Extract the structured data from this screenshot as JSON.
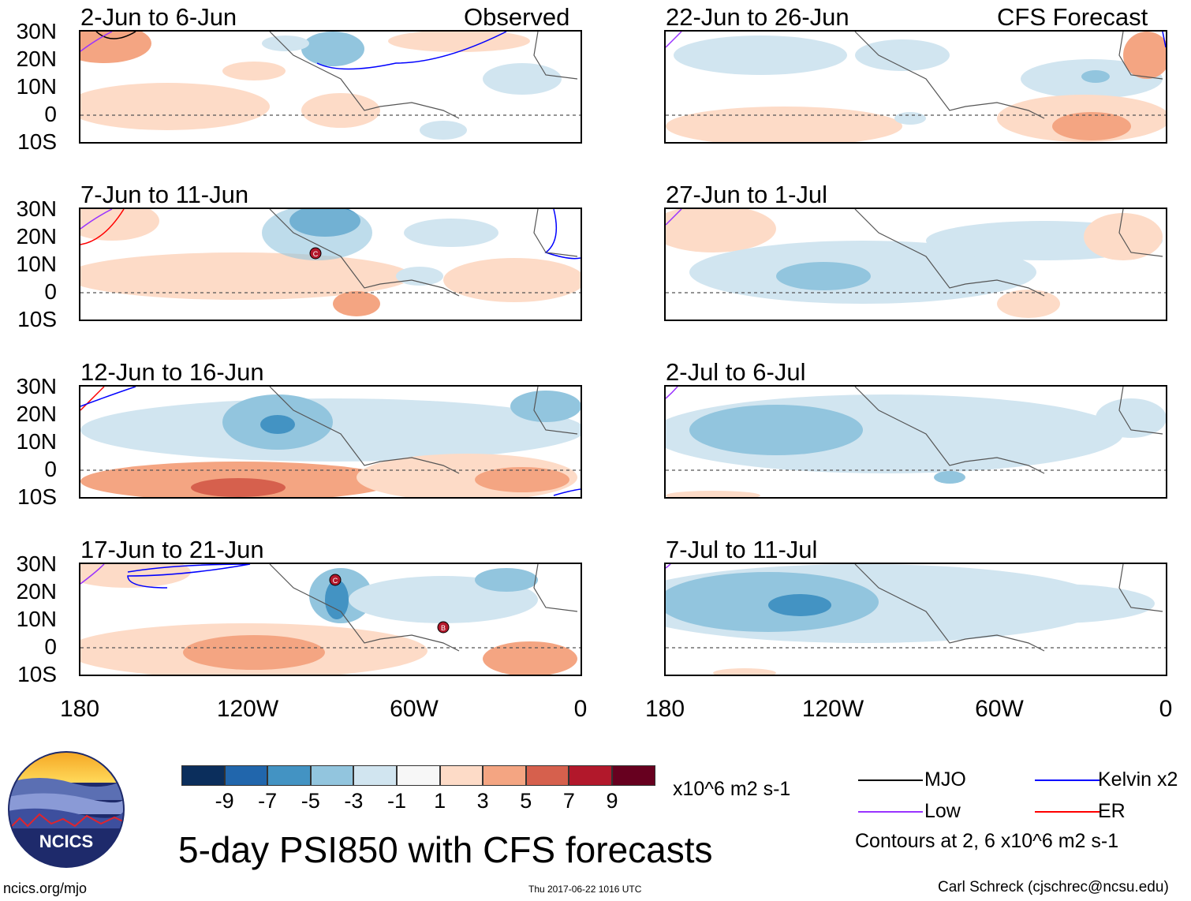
{
  "figure": {
    "title": "5-day PSI850 with CFS forecasts",
    "left_header": "Observed",
    "right_header": "CFS Forecast",
    "lat_labels": [
      "30N",
      "20N",
      "10N",
      "0",
      "10S"
    ],
    "lon_labels": [
      "180",
      "120W",
      "60W",
      "0"
    ],
    "left_panels": [
      {
        "period": "2-Jun to 6-Jun"
      },
      {
        "period": "7-Jun to 11-Jun"
      },
      {
        "period": "12-Jun to 16-Jun"
      },
      {
        "period": "17-Jun to 21-Jun"
      }
    ],
    "right_panels": [
      {
        "period": "22-Jun to 26-Jun"
      },
      {
        "period": "27-Jun to 1-Jul"
      },
      {
        "period": "2-Jul to 6-Jul"
      },
      {
        "period": "7-Jul to 11-Jul"
      }
    ],
    "storm_markers": [
      {
        "panel": "7-Jun to 11-Jun",
        "label": "C"
      },
      {
        "panel": "17-Jun to 21-Jun",
        "label": "C"
      },
      {
        "panel": "17-Jun to 21-Jun",
        "label": "B"
      }
    ]
  },
  "colorbar": {
    "unit": "x10^6 m2 s-1",
    "tick_labels": [
      "-9",
      "-7",
      "-5",
      "-3",
      "-1",
      "1",
      "3",
      "5",
      "7",
      "9"
    ],
    "colors": [
      "#0b2e5c",
      "#2166ac",
      "#4393c3",
      "#92c5de",
      "#d1e5f0",
      "#f7f7f7",
      "#fddbc7",
      "#f4a582",
      "#d6604d",
      "#b2182b",
      "#67001f"
    ]
  },
  "legend": {
    "items": [
      {
        "label": "MJO",
        "color": "#000000"
      },
      {
        "label": "Kelvin x2",
        "color": "#0000ff"
      },
      {
        "label": "Low",
        "color": "#9933ff"
      },
      {
        "label": "ER",
        "color": "#ff0000"
      }
    ],
    "note": "Contours at 2, 6 x10^6 m2 s-1"
  },
  "footer": {
    "logo_text": "NCICS",
    "url": "ncics.org/mjo",
    "timestamp": "Thu 2017-06-22 1016 UTC",
    "credit": "Carl Schreck (cjschrec@ncsu.edu)"
  }
}
